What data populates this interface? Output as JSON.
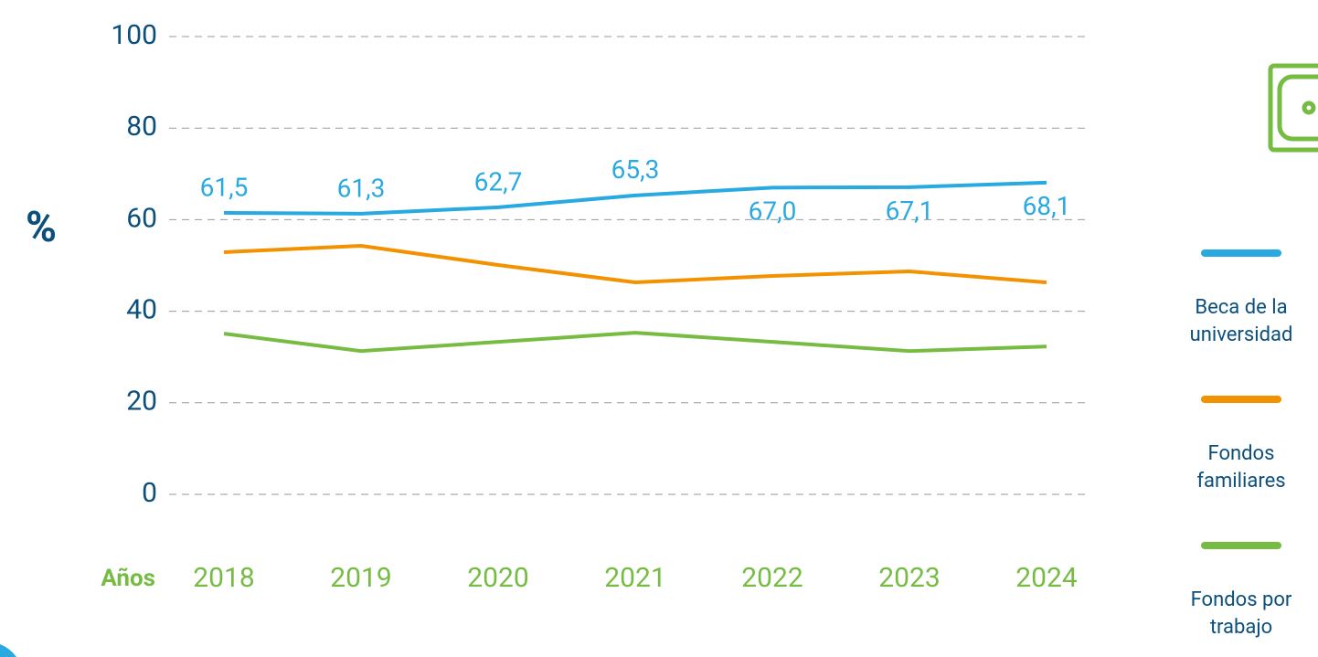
{
  "chart_data": {
    "type": "line",
    "y_label": "%",
    "x_label": "Años",
    "categories": [
      "2018",
      "2019",
      "2020",
      "2021",
      "2022",
      "2023",
      "2024"
    ],
    "series": [
      {
        "name": "Beca de la universidad",
        "color": "#29a9e1",
        "values": [
          61.5,
          61.3,
          62.7,
          65.3,
          67.0,
          67.1,
          68.1
        ],
        "value_labels": [
          "61,5",
          "61,3",
          "62,7",
          "65,3",
          "67,0",
          "67,1",
          "68,1"
        ]
      },
      {
        "name": "Fondos familiares",
        "color": "#f39200",
        "values": [
          52.9,
          54.3,
          50.1,
          46.3,
          47.7,
          48.7,
          46.3
        ]
      },
      {
        "name": "Fondos por trabajo",
        "color": "#76bc43",
        "values": [
          35.1,
          31.3,
          33.3,
          35.3,
          33.3,
          31.3,
          32.3
        ]
      }
    ],
    "ylim": [
      0,
      100
    ],
    "yticks": [
      0,
      20,
      40,
      60,
      80,
      100
    ],
    "grid": true
  }
}
